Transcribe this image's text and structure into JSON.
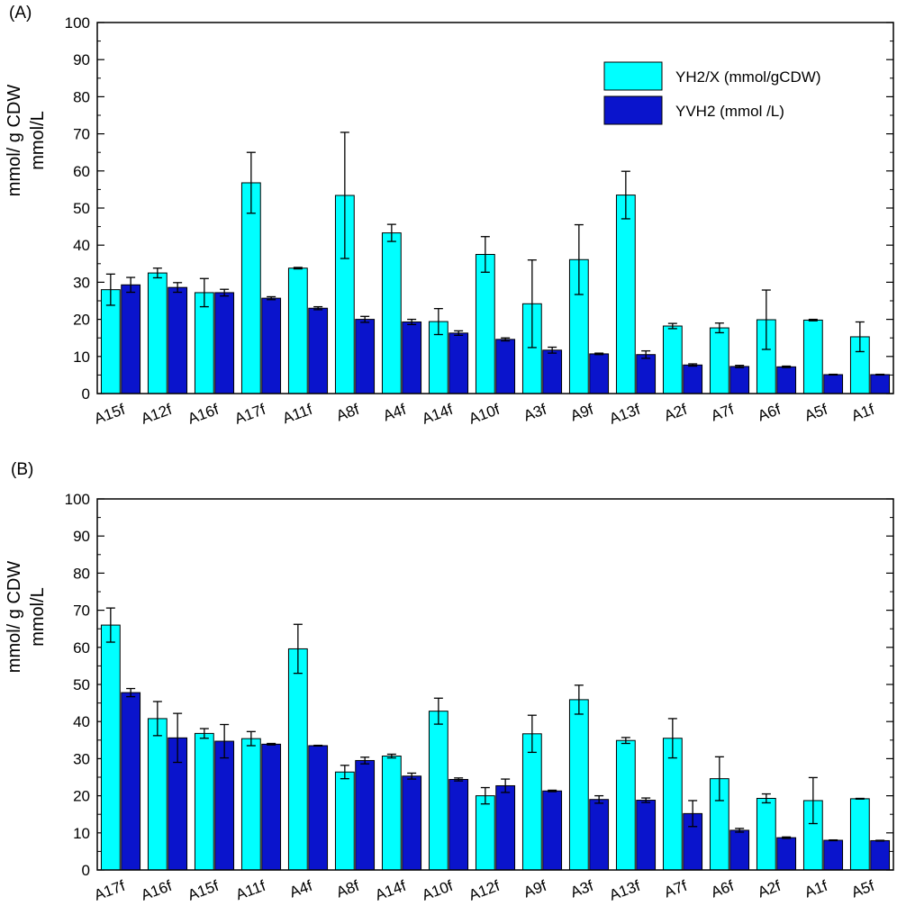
{
  "colors": {
    "series1": "#00FFFF",
    "series2": "#0A14CC",
    "axis": "#000000",
    "background": "#FFFFFF"
  },
  "legend": {
    "entries": [
      "YH2/X (mmol/gCDW)",
      "YVH2 (mmol /L)"
    ],
    "placement": "top-right"
  },
  "chart_data": [
    {
      "type": "bar",
      "panel_label": "(A)",
      "ylabel_lines": [
        "mmol/ g CDW",
        "mmol/L"
      ],
      "ylim": [
        0,
        100
      ],
      "yticks": [
        0,
        10,
        20,
        30,
        40,
        50,
        60,
        70,
        80,
        90,
        100
      ],
      "grid": false,
      "categories": [
        "A15f",
        "A12f",
        "A16f",
        "A17f",
        "A11f",
        "A8f",
        "A4f",
        "A14f",
        "A10f",
        "A3f",
        "A9f",
        "A13f",
        "A2f",
        "A7f",
        "A6f",
        "A5f",
        "A1f"
      ],
      "series": [
        {
          "name": "YH2/X (mmol/gCDW)",
          "values": [
            28,
            32.5,
            27.2,
            56.8,
            33.8,
            53.4,
            43.3,
            19.4,
            37.5,
            24.2,
            36.1,
            53.5,
            18.2,
            17.7,
            19.9,
            19.8,
            15.3
          ],
          "errors": [
            4.2,
            1.3,
            3.8,
            8.2,
            0.2,
            17,
            2.3,
            3.5,
            4.8,
            11.8,
            9.4,
            6.4,
            0.7,
            1.3,
            8,
            0.2,
            4
          ]
        },
        {
          "name": "YVH2 (mmol /L)",
          "values": [
            29.3,
            28.6,
            27.2,
            25.7,
            23,
            20,
            19.3,
            16.3,
            14.6,
            11.7,
            10.7,
            10.5,
            7.7,
            7.3,
            7.2,
            5.1,
            5.1
          ],
          "errors": [
            2,
            1.3,
            0.9,
            0.4,
            0.4,
            0.8,
            0.7,
            0.6,
            0.4,
            0.8,
            0.2,
            1,
            0.3,
            0.3,
            0.2,
            0.1,
            0.1
          ]
        }
      ]
    },
    {
      "type": "bar",
      "panel_label": "(B)",
      "ylabel_lines": [
        "mmol/ g CDW",
        "mmol/L"
      ],
      "ylim": [
        0,
        100
      ],
      "yticks": [
        0,
        10,
        20,
        30,
        40,
        50,
        60,
        70,
        80,
        90,
        100
      ],
      "grid": false,
      "categories": [
        "A17f",
        "A16f",
        "A15f",
        "A11f",
        "A4f",
        "A8f",
        "A14f",
        "A10f",
        "A12f",
        "A9f",
        "A3f",
        "A13f",
        "A7f",
        "A6f",
        "A2f",
        "A1f",
        "A5f"
      ],
      "series": [
        {
          "name": "YH2/X (mmol/gCDW)",
          "values": [
            66,
            40.8,
            36.8,
            35.4,
            59.6,
            26.4,
            30.7,
            42.8,
            20,
            36.7,
            45.9,
            34.9,
            35.5,
            24.6,
            19.3,
            18.7,
            19.2
          ],
          "errors": [
            4.6,
            4.6,
            1.3,
            1.9,
            6.6,
            1.8,
            0.5,
            3.5,
            2.2,
            5,
            3.9,
            0.8,
            5.3,
            5.9,
            1.2,
            6.2,
            0.1
          ]
        },
        {
          "name": "YVH2 (mmol /L)",
          "values": [
            47.8,
            35.6,
            34.7,
            33.9,
            33.5,
            29.5,
            25.3,
            24.4,
            22.7,
            21.3,
            19,
            18.8,
            15.2,
            10.7,
            8.7,
            8,
            7.9
          ],
          "errors": [
            1.1,
            6.6,
            4.5,
            0.2,
            0.1,
            0.9,
            0.8,
            0.4,
            1.8,
            0.2,
            1,
            0.6,
            3.5,
            0.5,
            0.2,
            0.1,
            0.1
          ]
        }
      ]
    }
  ]
}
